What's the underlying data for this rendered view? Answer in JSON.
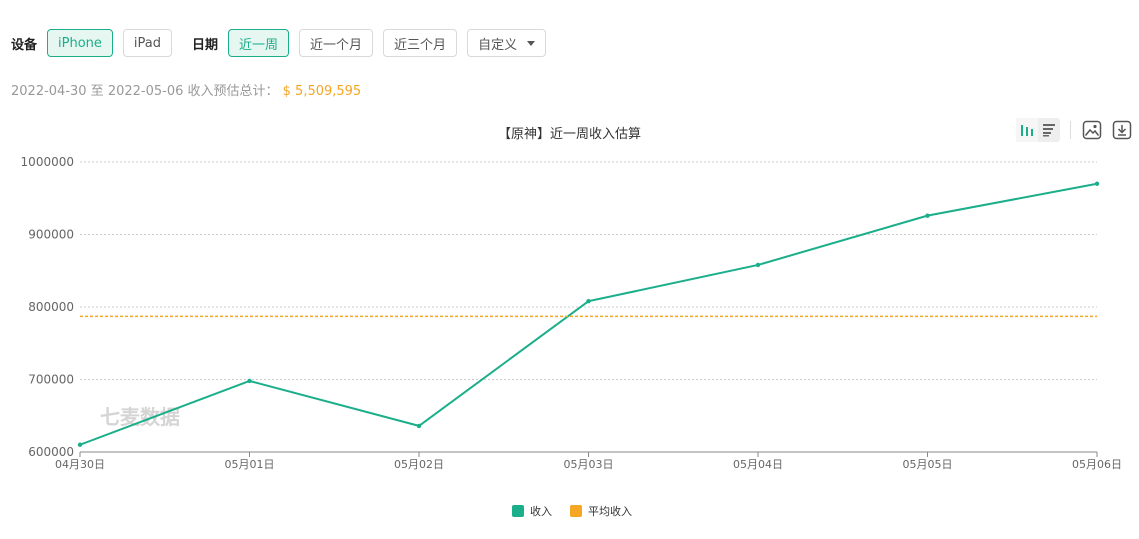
{
  "filters": {
    "device_label": "设备",
    "device_options": [
      "iPhone",
      "iPad"
    ],
    "device_selected": "iPhone",
    "date_label": "日期",
    "date_options": [
      "近一周",
      "近一个月",
      "近三个月"
    ],
    "date_selected": "近一周",
    "custom_label": "自定义"
  },
  "summary": {
    "range_text": "2022-04-30 至 2022-05-06 收入预估总计：",
    "total": "$ 5,509,595"
  },
  "toolbox": {
    "icons": [
      "line-chart-icon",
      "bar-list-icon",
      "image-icon",
      "download-icon"
    ]
  },
  "watermark": "七麦数据",
  "colors": {
    "accent": "#1aae8a",
    "average": "#f5a623"
  },
  "chart_data": {
    "type": "line",
    "title": "【原神】近一周收入估算",
    "categories": [
      "04月30日",
      "05月01日",
      "05月02日",
      "05月03日",
      "05月04日",
      "05月05日",
      "05月06日"
    ],
    "series": [
      {
        "name": "收入",
        "color": "#1aae8a",
        "values": [
          610000,
          698000,
          636000,
          808000,
          858000,
          926000,
          970000
        ]
      },
      {
        "name": "平均收入",
        "color": "#f5a623",
        "values": [
          787085,
          787085,
          787085,
          787085,
          787085,
          787085,
          787085
        ]
      }
    ],
    "y_ticks": [
      600000,
      700000,
      800000,
      900000,
      1000000
    ],
    "ylim": [
      600000,
      1000000
    ],
    "grid": true,
    "legend_position": "bottom-center"
  }
}
